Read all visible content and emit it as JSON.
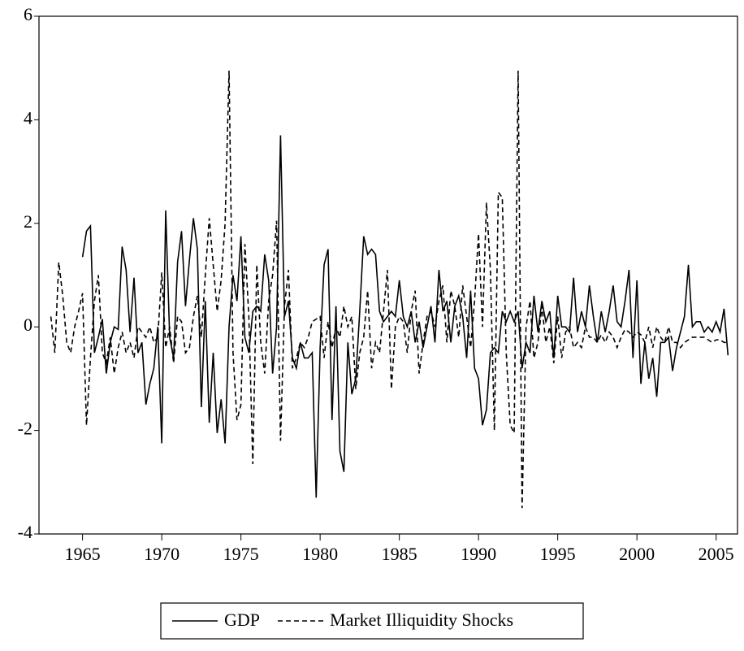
{
  "chart_data": {
    "type": "line",
    "x": [
      1963,
      1963.25,
      1963.5,
      1963.75,
      1964,
      1964.25,
      1964.5,
      1964.75,
      1965,
      1965.25,
      1965.5,
      1965.75,
      1966,
      1966.25,
      1966.5,
      1966.75,
      1967,
      1967.25,
      1967.5,
      1967.75,
      1968,
      1968.25,
      1968.5,
      1968.75,
      1969,
      1969.25,
      1969.5,
      1969.75,
      1970,
      1970.25,
      1970.5,
      1970.75,
      1971,
      1971.25,
      1971.5,
      1971.75,
      1972,
      1972.25,
      1972.5,
      1972.75,
      1973,
      1973.25,
      1973.5,
      1973.75,
      1974,
      1974.25,
      1974.5,
      1974.75,
      1975,
      1975.25,
      1975.5,
      1975.75,
      1976,
      1976.25,
      1976.5,
      1976.75,
      1977,
      1977.25,
      1977.5,
      1977.75,
      1978,
      1978.25,
      1978.5,
      1978.75,
      1979,
      1979.25,
      1979.5,
      1979.75,
      1980,
      1980.25,
      1980.5,
      1980.75,
      1981,
      1981.25,
      1981.5,
      1981.75,
      1982,
      1982.25,
      1982.5,
      1982.75,
      1983,
      1983.25,
      1983.5,
      1983.75,
      1984,
      1984.25,
      1984.5,
      1984.75,
      1985,
      1985.25,
      1985.5,
      1985.75,
      1986,
      1986.25,
      1986.5,
      1986.75,
      1987,
      1987.25,
      1987.5,
      1987.75,
      1988,
      1988.25,
      1988.5,
      1988.75,
      1989,
      1989.25,
      1989.5,
      1989.75,
      1990,
      1990.25,
      1990.5,
      1990.75,
      1991,
      1991.25,
      1991.5,
      1991.75,
      1992,
      1992.25,
      1992.5,
      1992.75,
      1993,
      1993.25,
      1993.5,
      1993.75,
      1994,
      1994.25,
      1994.5,
      1994.75,
      1995,
      1995.25,
      1995.5,
      1995.75,
      1996,
      1996.25,
      1996.5,
      1996.75,
      1997,
      1997.25,
      1997.5,
      1997.75,
      1998,
      1998.25,
      1998.5,
      1998.75,
      1999,
      1999.25,
      1999.5,
      1999.75,
      2000,
      2000.25,
      2000.5,
      2000.75,
      2001,
      2001.25,
      2001.5,
      2001.75,
      2002,
      2002.25,
      2002.5,
      2002.75,
      2003,
      2003.25,
      2003.5,
      2003.75,
      2004,
      2004.25,
      2004.5,
      2004.75,
      2005,
      2005.25,
      2005.5,
      2005.75
    ],
    "series": [
      {
        "name": "GDP",
        "color": "#000000",
        "dash": false,
        "values": [
          null,
          null,
          null,
          null,
          null,
          null,
          null,
          null,
          1.35,
          1.85,
          1.95,
          -0.5,
          -0.2,
          0.15,
          -0.9,
          -0.3,
          0.0,
          -0.05,
          1.55,
          1.1,
          -0.1,
          0.95,
          -0.5,
          -0.3,
          -1.5,
          -1.1,
          -0.8,
          0.0,
          -2.25,
          2.25,
          -0.2,
          -0.6,
          1.25,
          1.85,
          0.4,
          1.3,
          2.1,
          1.5,
          -1.55,
          0.5,
          -1.85,
          -0.5,
          -2.05,
          -1.4,
          -2.25,
          0.0,
          1.0,
          0.5,
          1.75,
          -0.2,
          -0.5,
          0.3,
          0.4,
          0.3,
          1.4,
          0.9,
          -0.9,
          0.0,
          3.7,
          0.2,
          0.5,
          -0.6,
          -0.8,
          -0.3,
          -0.6,
          -0.6,
          -0.5,
          -3.3,
          -0.4,
          1.2,
          1.5,
          -1.8,
          0.4,
          -2.4,
          -2.8,
          -0.3,
          -1.3,
          -1.0,
          0.3,
          1.75,
          1.4,
          1.5,
          1.4,
          0.3,
          0.1,
          0.2,
          0.3,
          0.2,
          0.9,
          0.2,
          0.0,
          0.3,
          -0.3,
          0.1,
          -0.4,
          0.0,
          0.4,
          -0.3,
          1.1,
          0.3,
          0.5,
          -0.3,
          0.4,
          0.6,
          0.2,
          -0.6,
          0.7,
          -0.8,
          -1.0,
          -1.9,
          -1.6,
          -0.5,
          -0.4,
          -0.5,
          0.3,
          0.1,
          0.3,
          0.1,
          0.3,
          -0.8,
          -0.3,
          -0.5,
          0.6,
          -0.1,
          0.5,
          0.1,
          0.3,
          -0.6,
          0.6,
          0.0,
          0.0,
          -0.1,
          0.95,
          -0.1,
          0.3,
          0.0,
          0.8,
          0.2,
          -0.3,
          0.3,
          -0.1,
          0.3,
          0.8,
          0.1,
          0.0,
          0.5,
          1.1,
          -0.6,
          0.9,
          -1.1,
          -0.3,
          -1.0,
          -0.6,
          -1.35,
          -0.3,
          -0.3,
          -0.2,
          -0.85,
          -0.4,
          -0.1,
          0.2,
          1.2,
          0.0,
          0.1,
          0.1,
          -0.1,
          0.0,
          -0.1,
          0.1,
          -0.1,
          0.35,
          -0.55
        ]
      },
      {
        "name": "Market Illiquidity Shocks",
        "color": "#000000",
        "dash": true,
        "values": [
          0.2,
          -0.5,
          1.25,
          0.6,
          -0.3,
          -0.5,
          0.0,
          0.3,
          0.65,
          -1.9,
          -0.6,
          0.5,
          1.0,
          -0.5,
          -0.7,
          -0.2,
          -0.9,
          -0.4,
          -0.1,
          -0.5,
          -0.3,
          -0.6,
          0.0,
          -0.1,
          -0.2,
          0.0,
          -0.3,
          -0.2,
          1.05,
          -0.4,
          0.0,
          -0.7,
          0.2,
          0.1,
          -0.5,
          -0.4,
          0.2,
          0.6,
          -0.2,
          1.0,
          2.1,
          1.2,
          0.3,
          0.9,
          2.0,
          4.95,
          -0.5,
          -1.8,
          -1.5,
          1.6,
          0.2,
          -2.65,
          1.2,
          -0.3,
          -0.9,
          0.5,
          1.0,
          2.05,
          -2.2,
          0.4,
          1.1,
          -0.8,
          -0.6,
          -0.3,
          -0.4,
          -0.2,
          0.1,
          0.15,
          0.2,
          -0.6,
          0.1,
          -0.4,
          0.0,
          -0.2,
          0.4,
          0.0,
          0.2,
          -1.2,
          -0.5,
          -0.2,
          0.7,
          -0.8,
          -0.3,
          -0.5,
          0.3,
          1.1,
          -1.2,
          0.0,
          0.2,
          0.1,
          -0.5,
          0.3,
          0.7,
          -0.9,
          -0.3,
          0.2,
          0.3,
          0.0,
          0.5,
          0.8,
          -0.3,
          0.7,
          0.4,
          -0.2,
          0.8,
          0.2,
          -0.4,
          0.5,
          1.8,
          0.0,
          2.4,
          1.1,
          -2.0,
          2.6,
          2.5,
          -0.5,
          -1.9,
          -2.05,
          4.95,
          -3.5,
          0.0,
          0.5,
          -0.6,
          -0.3,
          0.4,
          -0.3,
          0.0,
          -0.7,
          0.2,
          -0.6,
          -0.1,
          0.0,
          -0.4,
          -0.3,
          -0.4,
          0.0,
          -0.2,
          -0.2,
          -0.3,
          -0.15,
          -0.3,
          -0.1,
          -0.2,
          -0.4,
          -0.2,
          -0.05,
          -0.1,
          -0.2,
          -0.1,
          -0.15,
          -0.3,
          0.0,
          -0.4,
          0.0,
          -0.2,
          -0.3,
          0.0,
          -0.3,
          -0.3,
          -0.4,
          -0.3,
          -0.25,
          -0.2,
          -0.2,
          -0.2,
          -0.2,
          -0.25,
          -0.3,
          -0.25,
          -0.25,
          -0.3,
          -0.3
        ]
      }
    ],
    "xlim": [
      1962.25,
      2006.35
    ],
    "xticks": [
      1965,
      1970,
      1975,
      1980,
      1985,
      1990,
      1995,
      2000,
      2005
    ],
    "ylim": [
      -4,
      6
    ],
    "yticks": [
      -4,
      -2,
      0,
      2,
      4,
      6
    ],
    "legend": "bottom"
  }
}
